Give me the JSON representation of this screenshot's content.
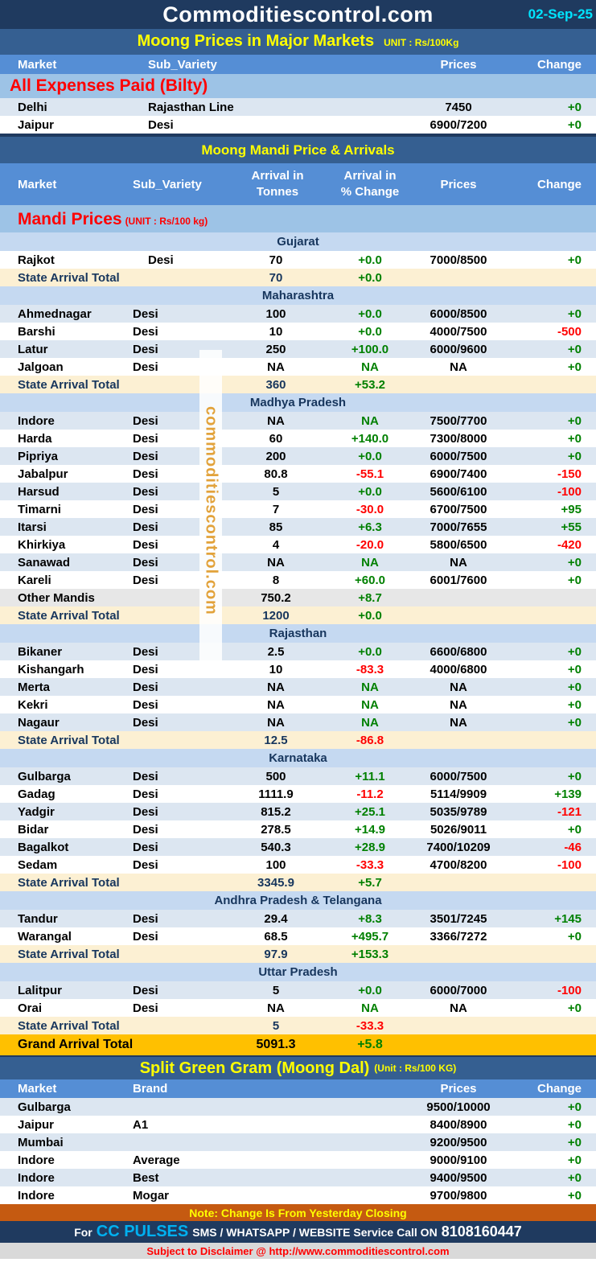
{
  "header": {
    "site": "Commoditiescontrol.com",
    "date": "02-Sep-25"
  },
  "major": {
    "title": "Moong Prices in Major Markets",
    "unit": "UNIT : Rs/100Kg",
    "columns": [
      "Market",
      "Sub_Variety",
      "Prices",
      "Change"
    ],
    "group": "All Expenses Paid (Bilty)",
    "rows": [
      {
        "market": "Delhi",
        "variety": "Rajasthan Line",
        "price": "7450",
        "change": "+0"
      },
      {
        "market": "Jaipur",
        "variety": "Desi",
        "price": "6900/7200",
        "change": "+0"
      }
    ]
  },
  "mandi": {
    "title": "Moong Mandi Price & Arrivals",
    "columns": {
      "market": "Market",
      "variety": "Sub_Variety",
      "arrival1": "Arrival in",
      "arrival2": "Tonnes",
      "pct1": "Arrival  in",
      "pct2": "% Change",
      "prices": "Prices",
      "change": "Change"
    },
    "group": "Mandi Prices",
    "group_unit": "(UNIT : Rs/100 kg)",
    "total_label": "State Arrival Total",
    "sections": [
      {
        "state": "Gujarat",
        "rows": [
          {
            "market": "Rajkot",
            "variety": "Desi",
            "arrival": "70",
            "pct": "+0.0",
            "price": "7000/8500",
            "change": "+0"
          }
        ],
        "total": {
          "arrival": "70",
          "pct": "+0.0"
        }
      },
      {
        "state": "Maharashtra",
        "rows": [
          {
            "market": "Ahmednagar",
            "variety": "Desi",
            "arrival": "100",
            "pct": "+0.0",
            "price": "6000/8500",
            "change": "+0"
          },
          {
            "market": "Barshi",
            "variety": "Desi",
            "arrival": "10",
            "pct": "+0.0",
            "price": "4000/7500",
            "change": "-500"
          },
          {
            "market": "Latur",
            "variety": "Desi",
            "arrival": "250",
            "pct": "+100.0",
            "price": "6000/9600",
            "change": "+0"
          },
          {
            "market": "Jalgoan",
            "variety": "Desi",
            "arrival": "NA",
            "pct": "NA",
            "price": "NA",
            "change": "+0"
          }
        ],
        "total": {
          "arrival": "360",
          "pct": "+53.2"
        }
      },
      {
        "state": "Madhya Pradesh",
        "rows": [
          {
            "market": "Indore",
            "variety": "Desi",
            "arrival": "NA",
            "pct": "NA",
            "price": "7500/7700",
            "change": "+0"
          },
          {
            "market": "Harda",
            "variety": "Desi",
            "arrival": "60",
            "pct": "+140.0",
            "price": "7300/8000",
            "change": "+0"
          },
          {
            "market": "Pipriya",
            "variety": "Desi",
            "arrival": "200",
            "pct": "+0.0",
            "price": "6000/7500",
            "change": "+0"
          },
          {
            "market": "Jabalpur",
            "variety": "Desi",
            "arrival": "80.8",
            "pct": "-55.1",
            "price": "6900/7400",
            "change": "-150"
          },
          {
            "market": "Harsud",
            "variety": "Desi",
            "arrival": "5",
            "pct": "+0.0",
            "price": "5600/6100",
            "change": "-100"
          },
          {
            "market": "Timarni",
            "variety": "Desi",
            "arrival": "7",
            "pct": "-30.0",
            "price": "6700/7500",
            "change": "+95"
          },
          {
            "market": "Itarsi",
            "variety": "Desi",
            "arrival": "85",
            "pct": "+6.3",
            "price": "7000/7655",
            "change": "+55"
          },
          {
            "market": "Khirkiya",
            "variety": "Desi",
            "arrival": "4",
            "pct": "-20.0",
            "price": "5800/6500",
            "change": "-420"
          },
          {
            "market": "Sanawad",
            "variety": "Desi",
            "arrival": "NA",
            "pct": "NA",
            "price": "NA",
            "change": "+0"
          },
          {
            "market": "Kareli",
            "variety": "Desi",
            "arrival": "8",
            "pct": "+60.0",
            "price": "6001/7600",
            "change": "+0"
          },
          {
            "market": "Other Mandis",
            "variety": "",
            "arrival": "750.2",
            "pct": "+8.7",
            "price": "",
            "change": "",
            "other": true
          }
        ],
        "total": {
          "arrival": "1200",
          "pct": "+0.0"
        }
      },
      {
        "state": "Rajasthan",
        "rows": [
          {
            "market": "Bikaner",
            "variety": "Desi",
            "arrival": "2.5",
            "pct": "+0.0",
            "price": "6600/6800",
            "change": "+0"
          },
          {
            "market": "Kishangarh",
            "variety": "Desi",
            "arrival": "10",
            "pct": "-83.3",
            "price": "4000/6800",
            "change": "+0"
          },
          {
            "market": "Merta",
            "variety": "Desi",
            "arrival": "NA",
            "pct": "NA",
            "price": "NA",
            "change": "+0"
          },
          {
            "market": "Kekri",
            "variety": "Desi",
            "arrival": "NA",
            "pct": "NA",
            "price": "NA",
            "change": "+0"
          },
          {
            "market": "Nagaur",
            "variety": "Desi",
            "arrival": "NA",
            "pct": "NA",
            "price": "NA",
            "change": "+0"
          }
        ],
        "total": {
          "arrival": "12.5",
          "pct": "-86.8"
        }
      },
      {
        "state": "Karnataka",
        "rows": [
          {
            "market": "Gulbarga",
            "variety": "Desi",
            "arrival": "500",
            "pct": "+11.1",
            "price": "6000/7500",
            "change": "+0"
          },
          {
            "market": "Gadag",
            "variety": "Desi",
            "arrival": "1111.9",
            "pct": "-11.2",
            "price": "5114/9909",
            "change": "+139"
          },
          {
            "market": "Yadgir",
            "variety": "Desi",
            "arrival": "815.2",
            "pct": "+25.1",
            "price": "5035/9789",
            "change": "-121"
          },
          {
            "market": "Bidar",
            "variety": "Desi",
            "arrival": "278.5",
            "pct": "+14.9",
            "price": "5026/9011",
            "change": "+0"
          },
          {
            "market": "Bagalkot",
            "variety": "Desi",
            "arrival": "540.3",
            "pct": "+28.9",
            "price": "7400/10209",
            "change": "-46"
          },
          {
            "market": "Sedam",
            "variety": "Desi",
            "arrival": "100",
            "pct": "-33.3",
            "price": "4700/8200",
            "change": "-100"
          }
        ],
        "total": {
          "arrival": "3345.9",
          "pct": "+5.7"
        }
      },
      {
        "state": "Andhra Pradesh & Telangana",
        "rows": [
          {
            "market": "Tandur",
            "variety": "Desi",
            "arrival": "29.4",
            "pct": "+8.3",
            "price": "3501/7245",
            "change": "+145"
          },
          {
            "market": "Warangal",
            "variety": "Desi",
            "arrival": "68.5",
            "pct": "+495.7",
            "price": "3366/7272",
            "change": "+0"
          }
        ],
        "total": {
          "arrival": "97.9",
          "pct": "+153.3"
        }
      },
      {
        "state": "Uttar Pradesh",
        "rows": [
          {
            "market": "Lalitpur",
            "variety": "Desi",
            "arrival": "5",
            "pct": "+0.0",
            "price": "6000/7000",
            "change": "-100"
          },
          {
            "market": "Orai",
            "variety": "Desi",
            "arrival": "NA",
            "pct": "NA",
            "price": "NA",
            "change": "+0"
          }
        ],
        "total": {
          "arrival": "5",
          "pct": "-33.3"
        }
      }
    ],
    "grand": {
      "label": "Grand Arrival Total",
      "arrival": "5091.3",
      "pct": "+5.8"
    }
  },
  "dal": {
    "title": "Split Green Gram (Moong Dal)",
    "unit": "(Unit : Rs/100 KG)",
    "columns": [
      "Market",
      "Brand",
      "Prices",
      "Change"
    ],
    "rows": [
      {
        "market": "Gulbarga",
        "brand": "",
        "price": "9500/10000",
        "change": "+0"
      },
      {
        "market": "Jaipur",
        "brand": "A1",
        "price": "8400/8900",
        "change": "+0"
      },
      {
        "market": "Mumbai",
        "brand": "",
        "price": "9200/9500",
        "change": "+0"
      },
      {
        "market": "Indore",
        "brand": "Average",
        "price": "9000/9100",
        "change": "+0"
      },
      {
        "market": "Indore",
        "brand": "Best",
        "price": "9400/9500",
        "change": "+0"
      },
      {
        "market": "Indore",
        "brand": "Mogar",
        "price": "9700/9800",
        "change": "+0"
      }
    ]
  },
  "note": "Note: Change Is From Yesterday Closing",
  "footer": {
    "for": "For",
    "brand": "CC PULSES",
    "service": "SMS / WHATSAPP / WEBSITE Service Call  ON",
    "phone": "8108160447"
  },
  "disclaimer": "Subject to Disclaimer @  http://www.commoditiescontrol.com",
  "watermark": "commoditiescontrol.com",
  "colors": {
    "positive": "#008000",
    "negative": "#ff0000",
    "header": "#1f3a5f",
    "accent": "#ffff00"
  }
}
